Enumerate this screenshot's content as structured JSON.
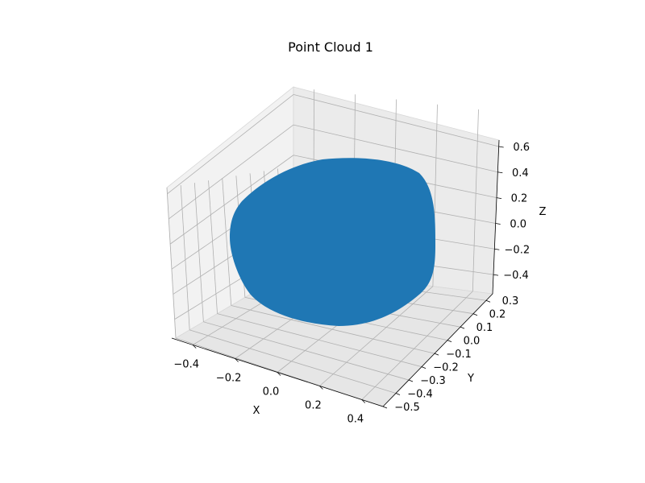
{
  "chart_data": {
    "type": "scatter",
    "projection": "3d",
    "title": "Point Cloud 1",
    "xlabel": "X",
    "ylabel": "Y",
    "zlabel": "Z",
    "xlim": [
      -0.5,
      0.5
    ],
    "ylim": [
      -0.5,
      0.35
    ],
    "zlim": [
      -0.55,
      0.65
    ],
    "xticks": [
      -0.4,
      -0.2,
      0.0,
      0.2,
      0.4
    ],
    "xtick_labels": [
      "−0.4",
      "−0.2",
      "0.0",
      "0.2",
      "0.4"
    ],
    "yticks": [
      -0.5,
      -0.4,
      -0.3,
      -0.2,
      -0.1,
      0.0,
      0.1,
      0.2,
      0.3
    ],
    "ytick_labels": [
      "−0.5",
      "−0.4",
      "−0.3",
      "−0.2",
      "−0.1",
      "0.0",
      "0.1",
      "0.2",
      "0.3"
    ],
    "zticks": [
      -0.4,
      -0.2,
      0.0,
      0.2,
      0.4,
      0.6
    ],
    "ztick_labels": [
      "−0.4",
      "−0.2",
      "0.0",
      "0.2",
      "0.4",
      "0.6"
    ],
    "grid": true,
    "point_color": "#1f77b4",
    "points": [
      {
        "x": 0.0,
        "y": 0.0,
        "z": 0.0
      }
    ],
    "shape": "dense blob of points approximately spherical, centered near origin"
  }
}
